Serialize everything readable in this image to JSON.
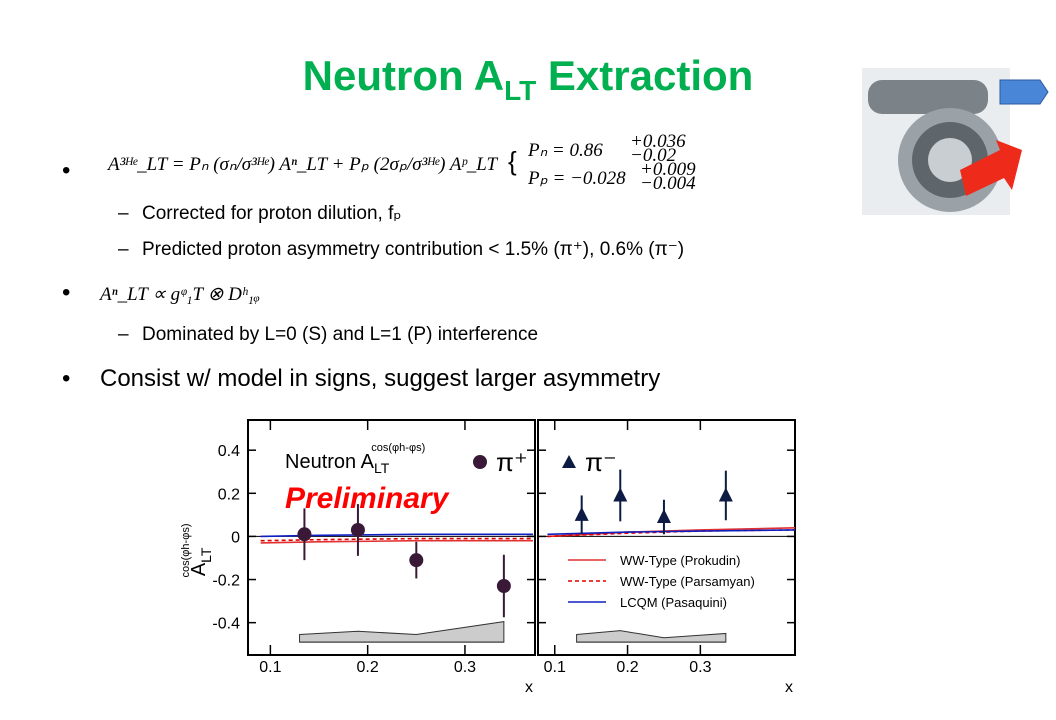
{
  "title": {
    "main": "Neutron A",
    "sub": "LT",
    "rest": " Extraction"
  },
  "bullets": [
    {
      "formula": "A³ᴴᵉ_LT = Pₙ (σₙ/σ³ᴴᵉ) Aⁿ_LT + Pₚ (2σₚ/σ³ᴴᵉ) Aᵖ_LT",
      "polarizations": [
        {
          "text": "Pₙ = 0.86",
          "plus": "+0.036",
          "minus": "−0.02"
        },
        {
          "text": "Pₚ = −0.028",
          "plus": "+0.009",
          "minus": "−0.004"
        }
      ],
      "subs": [
        "Corrected for proton dilution, fₚ",
        "Predicted proton asymmetry contribution < 1.5% (π⁺), 0.6% (π⁻)"
      ]
    },
    {
      "formula": "Aⁿ_LT ∝ gᵠ₁T ⊗ Dʰ₁ᵩ",
      "subs": [
        "Dominated by L=0 (S) and L=1 (P) interference"
      ]
    },
    {
      "text": "Consist w/ model in signs, suggest larger asymmetry"
    }
  ],
  "chart_data": [
    {
      "type": "scatter",
      "xlim": [
        0.077,
        0.372
      ],
      "ylim": [
        -0.55,
        0.54
      ],
      "xticks": [
        0.1,
        0.2,
        0.3
      ],
      "yticks": [
        0.4,
        0.2,
        0,
        -0.2,
        -0.4
      ],
      "ytick_labels": true,
      "x_label": "x",
      "y_label": {
        "text": "A",
        "sub": "LT",
        "sup": "cos(φh-φs)"
      },
      "annotation": {
        "text": "Neutron A",
        "sub": "LT",
        "sup": "cos(φh-φs)"
      },
      "preliminary": "Preliminary",
      "point_legend": "upper right",
      "band": {
        "x": [
          0.13,
          0.19,
          0.25,
          0.34
        ],
        "values": [
          -0.455,
          -0.44,
          -0.455,
          -0.395
        ],
        "base": -0.49,
        "color": "#cccccc"
      },
      "series": [
        {
          "style": "solid",
          "color": "#e03030",
          "x": [
            0.09,
            0.15,
            0.25,
            0.37
          ],
          "values": [
            -0.03,
            -0.025,
            -0.02,
            -0.02
          ]
        },
        {
          "style": "dashed",
          "color": "#e00000",
          "x": [
            0.09,
            0.15,
            0.25,
            0.37
          ],
          "values": [
            -0.02,
            -0.015,
            -0.01,
            -0.01
          ]
        },
        {
          "style": "solid",
          "color": "#1020c0",
          "x": [
            0.09,
            0.15,
            0.25,
            0.37
          ],
          "values": [
            0.0,
            0.005,
            0.01,
            0.01
          ]
        },
        {
          "style": "points",
          "marker": "circle",
          "name": "π⁺",
          "color": "#3a1838",
          "x": [
            0.135,
            0.19,
            0.25,
            0.34
          ],
          "values": [
            0.01,
            0.03,
            -0.11,
            -0.23
          ],
          "errors": [
            0.12,
            0.12,
            0.085,
            0.145
          ]
        }
      ]
    },
    {
      "type": "scatter",
      "xlim": [
        0.077,
        0.43
      ],
      "ylim": [
        -0.55,
        0.54
      ],
      "xticks": [
        0.1,
        0.2,
        0.3
      ],
      "yticks": [
        0.4,
        0.2,
        0,
        -0.2,
        -0.4
      ],
      "ytick_labels": false,
      "x_label": "x",
      "point_legend": "upper left",
      "legend": "lower right",
      "band": {
        "x": [
          0.13,
          0.19,
          0.25,
          0.335
        ],
        "values": [
          -0.455,
          -0.437,
          -0.47,
          -0.45
        ],
        "base": -0.49,
        "color": "#cccccc"
      },
      "series": [
        {
          "style": "solid",
          "name": "WW-Type (Prokudin)",
          "color": "#e03030",
          "x": [
            0.09,
            0.2,
            0.3,
            0.43
          ],
          "values": [
            0.0,
            0.02,
            0.03,
            0.04
          ]
        },
        {
          "style": "dashed",
          "name": "WW-Type (Parsamyan)",
          "color": "#e00000",
          "x": [
            0.09,
            0.2,
            0.3,
            0.43
          ],
          "values": [
            0.0,
            0.015,
            0.025,
            0.03
          ]
        },
        {
          "style": "solid",
          "name": "LCQM (Pasaquini)",
          "color": "#1020c0",
          "x": [
            0.09,
            0.2,
            0.3,
            0.43
          ],
          "values": [
            0.01,
            0.02,
            0.025,
            0.03
          ]
        },
        {
          "style": "points",
          "marker": "triangle",
          "name": "π⁻",
          "color": "#0c1a44",
          "x": [
            0.137,
            0.19,
            0.25,
            0.335
          ],
          "values": [
            0.1,
            0.19,
            0.09,
            0.19
          ],
          "errors": [
            0.09,
            0.12,
            0.08,
            0.115
          ]
        }
      ]
    }
  ]
}
